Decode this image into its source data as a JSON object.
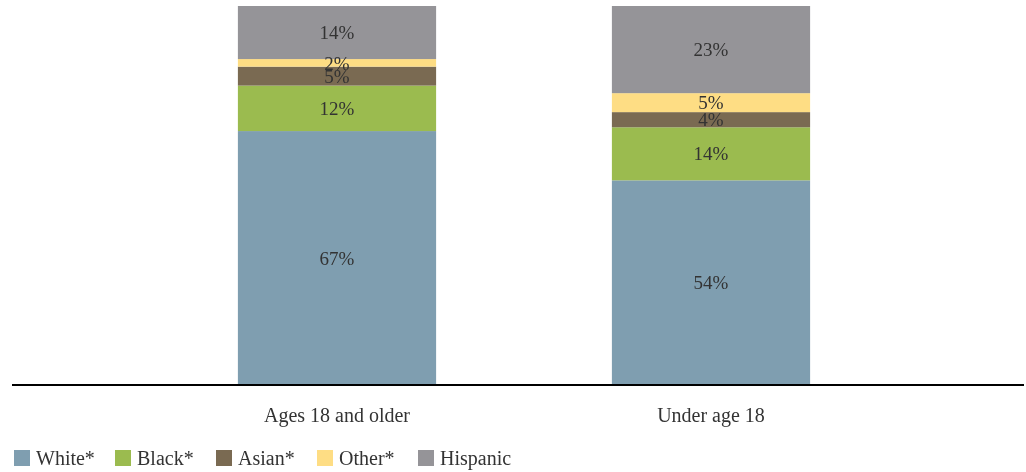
{
  "chart_data": {
    "type": "bar",
    "stacked": true,
    "legend": "bottom left",
    "categories": [
      "Ages 18 and older",
      "Under age 18"
    ],
    "series": [
      {
        "name": "White*",
        "color": "#7f9eb0",
        "values": [
          67,
          54
        ],
        "value_labels": [
          "67%",
          "54%"
        ]
      },
      {
        "name": "Black*",
        "color": "#9bbb4f",
        "values": [
          12,
          14
        ],
        "value_labels": [
          "12%",
          "14%"
        ]
      },
      {
        "name": "Asian*",
        "color": "#7a6a52",
        "values": [
          5,
          4
        ],
        "value_labels": [
          "5%",
          "4%"
        ]
      },
      {
        "name": "Other*",
        "color": "#fedd84",
        "values": [
          2,
          5
        ],
        "value_labels": [
          "2%",
          "5%"
        ]
      },
      {
        "name": "Hispanic",
        "color": "#959498",
        "values": [
          14,
          23
        ],
        "value_labels": [
          "14%",
          "23%"
        ]
      }
    ]
  }
}
